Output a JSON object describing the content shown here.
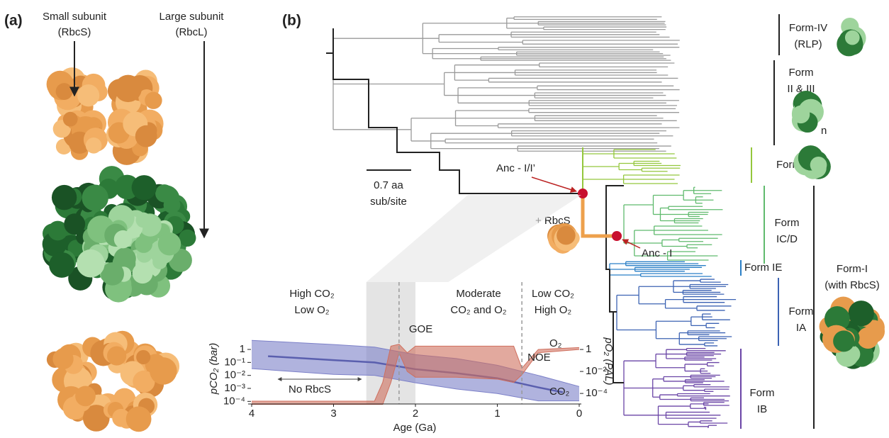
{
  "panel_a": {
    "label": "(a)",
    "small_subunit": [
      "Small subunit",
      "(RbcS)"
    ],
    "large_subunit": [
      "Large subunit",
      "(RbcL)"
    ]
  },
  "panel_b": {
    "label": "(b)",
    "scale_bar": [
      "0.7 aa",
      "sub/site"
    ],
    "anc_i_i": "Anc - I/I’",
    "rbcs": "+ RbcS",
    "anc_i": "Anc - I",
    "clades": [
      {
        "lines": [
          "Form-IV",
          "(RLP)"
        ]
      },
      {
        "lines": [
          "Form",
          "II & III"
        ],
        "sub": "n"
      },
      {
        "lines": [
          "Form-I’"
        ]
      },
      {
        "lines": [
          "Form",
          "IC/D"
        ]
      },
      {
        "lines": [
          "Form IE"
        ]
      },
      {
        "lines": [
          "Form",
          "IA"
        ]
      },
      {
        "lines": [
          "Form",
          "IB"
        ]
      },
      {
        "lines": [
          "Form-I",
          "(with RbcS)"
        ]
      }
    ]
  },
  "chart_data": {
    "type": "band",
    "x_label": "Age (Ga)",
    "y_label": "pCO₂ (bar)",
    "y2_label": "pO₂ (PAL)",
    "log_scale": true,
    "xlim": [
      4,
      0
    ],
    "xticks": [
      4,
      3,
      2,
      1,
      0
    ],
    "ylim": [
      6.3e-05,
      8.5
    ],
    "yticks": [
      {
        "value": 0.0001,
        "label": "10⁻⁴"
      },
      {
        "value": 0.001,
        "label": "10⁻³"
      },
      {
        "value": 0.01,
        "label": "10⁻²"
      },
      {
        "value": 0.1,
        "label": "10⁻¹"
      },
      1
    ],
    "y2lim": [
      1.1e-05,
      12.6
    ],
    "y2ticks": [
      {
        "value": 0.0001,
        "label": "10⁻⁴"
      },
      {
        "value": 0.01,
        "label": "10⁻²"
      },
      1
    ],
    "periods": [
      [
        "High CO₂",
        "Low O₂"
      ],
      [
        "Moderate",
        "CO₂ and O₂"
      ],
      [
        "Low CO₂",
        "High O₂"
      ]
    ],
    "events": [
      {
        "label": "GOE",
        "x": 2.2
      },
      {
        "label": "NOE",
        "x": 0.7
      }
    ],
    "highlight": [
      2.6,
      2.0
    ],
    "no_rbcs": "No RbcS",
    "series": [
      {
        "name": "CO₂",
        "color": "#7c80c8",
        "axis": "y",
        "x": [
          4,
          3,
          2.5,
          2,
          1.5,
          1,
          0.5,
          0
        ],
        "upper": [
          5,
          2.4,
          1.5,
          0.4,
          0.2,
          0.06,
          0.01,
          0.0014
        ],
        "lower": [
          0.033,
          0.012,
          0.01,
          0.0027,
          0.0009,
          0.0004,
          0.00011,
          0.00011
        ],
        "median_x": [
          3.8,
          3,
          2.5,
          2,
          1.5,
          1,
          0.5,
          0.2
        ],
        "median": [
          0.3,
          0.15,
          0.1,
          0.03,
          0.015,
          0.006,
          0.0012,
          0.0005
        ]
      },
      {
        "name": "O₂",
        "color": "#cf6f5e",
        "axis": "y2",
        "x": [
          4,
          2.5,
          2.4,
          2.3,
          2.2,
          2.1,
          2.0,
          1.5,
          1.0,
          0.8,
          0.7,
          0.5,
          0
        ],
        "upper": [
          2e-05,
          2e-05,
          0.001,
          2,
          3,
          0.5,
          2,
          2,
          2,
          2,
          0.02,
          1,
          1.5
        ],
        "lower": [
          1e-05,
          1e-05,
          1e-05,
          0.001,
          0.5,
          0.01,
          0.003,
          0.003,
          0.002,
          0.001,
          0.005,
          0.5,
          1
        ]
      }
    ]
  }
}
